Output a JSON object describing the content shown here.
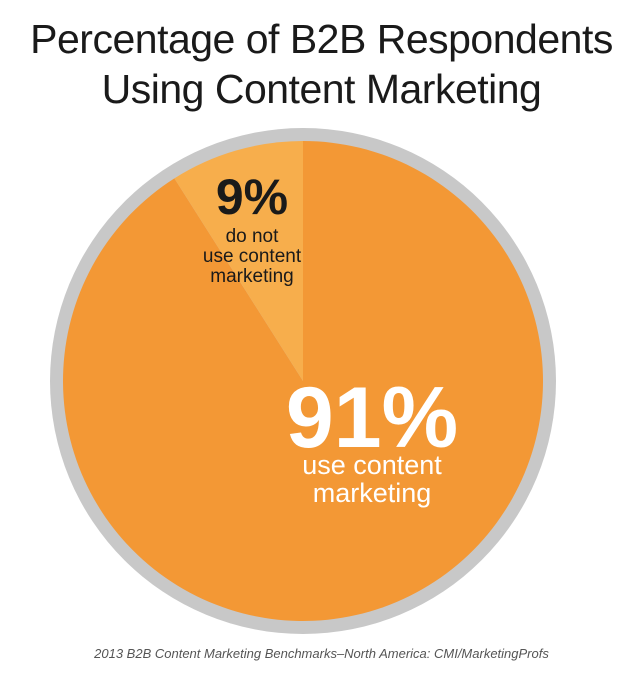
{
  "chart_data": {
    "type": "pie",
    "title_line1": "Percentage of B2B Respondents",
    "title_line2": "Using Content Marketing",
    "slices": [
      {
        "value": 91,
        "percent_label": "91%",
        "label_line1": "use content",
        "label_line2": "marketing",
        "color": "#F39835",
        "text_color": "#ffffff"
      },
      {
        "value": 9,
        "percent_label": "9%",
        "label_line1": "do not",
        "label_line2": "use content",
        "label_line3": "marketing",
        "color": "#F7AE4C",
        "text_color": "#1a1a1a"
      }
    ],
    "ring_color": "#C8C8C8"
  },
  "source": "2013 B2B Content Marketing Benchmarks–North America: CMI/MarketingProfs"
}
